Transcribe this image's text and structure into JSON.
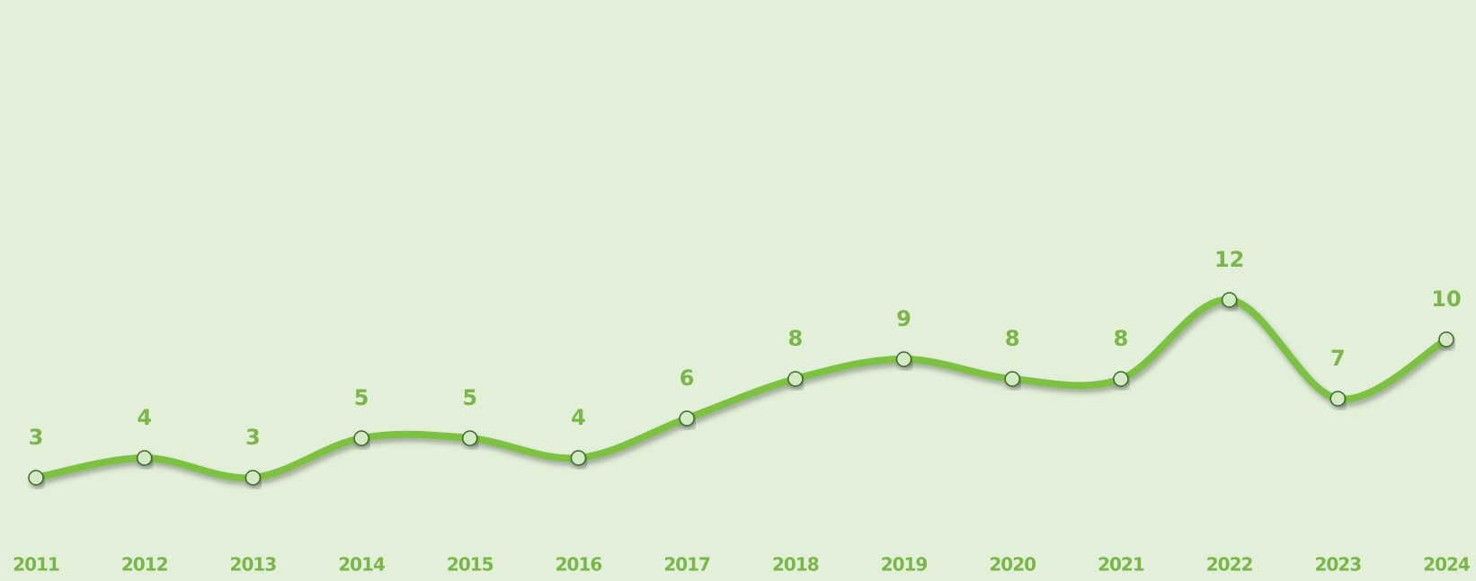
{
  "chart_data": {
    "type": "line",
    "categories": [
      "2011",
      "2012",
      "2013",
      "2014",
      "2015",
      "2016",
      "2017",
      "2018",
      "2019",
      "2020",
      "2021",
      "2022",
      "2023",
      "2024"
    ],
    "series": [
      {
        "color": "#7dc142",
        "values": [
          3,
          4,
          3,
          5,
          5,
          4,
          6,
          8,
          9,
          8,
          8,
          12,
          7,
          10
        ]
      }
    ],
    "ylim": [
      0,
      27
    ]
  }
}
